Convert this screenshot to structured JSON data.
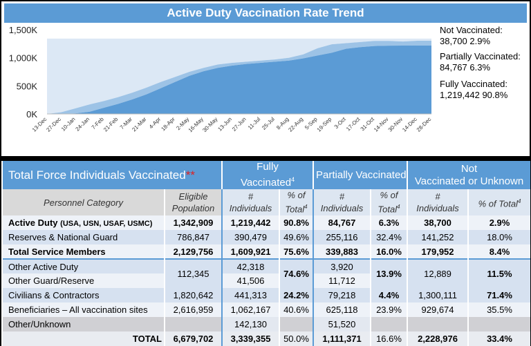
{
  "chart_data": {
    "type": "area",
    "title": "Active Duty Vaccination Rate Trend",
    "ylabel": "",
    "xlabel": "",
    "ylim": [
      0,
      1500
    ],
    "yticks": [
      "0K",
      "500K",
      "1,000K",
      "1,500K"
    ],
    "ytick_values": [
      0,
      500,
      1000,
      1500
    ],
    "x": [
      "13-Dec",
      "27-Dec",
      "10-Jan",
      "24-Jan",
      "7-Feb",
      "21-Feb",
      "7-Mar",
      "21-Mar",
      "4-Apr",
      "18-Apr",
      "2-May",
      "16-May",
      "30-May",
      "13-Jun",
      "27-Jun",
      "11-Jul",
      "25-Jul",
      "8-Aug",
      "22-Aug",
      "5-Sep",
      "19-Sep",
      "3-Oct",
      "17-Oct",
      "31-Oct",
      "14-Nov",
      "30-Nov",
      "14-Dec",
      "28-Dec"
    ],
    "stacked": true,
    "series": [
      {
        "name": "Fully Vaccinated",
        "color": "#5b9bd5",
        "values": [
          0,
          0,
          10,
          40,
          110,
          180,
          260,
          350,
          460,
          570,
          680,
          760,
          820,
          860,
          890,
          910,
          930,
          950,
          990,
          1040,
          1090,
          1160,
          1190,
          1210,
          1215,
          1217,
          1219,
          1219
        ]
      },
      {
        "name": "Partially Vaccinated",
        "color": "#9dc3e6",
        "values": [
          0,
          30,
          90,
          130,
          120,
          120,
          120,
          120,
          110,
          90,
          70,
          60,
          60,
          50,
          40,
          40,
          40,
          50,
          70,
          130,
          150,
          100,
          90,
          90,
          85,
          73,
          85,
          85
        ]
      },
      {
        "name": "Not Vaccinated",
        "color": "#dce8f5",
        "values": [
          1342,
          1312,
          1242,
          1172,
          1112,
          1042,
          962,
          872,
          772,
          682,
          592,
          522,
          462,
          432,
          412,
          392,
          372,
          342,
          282,
          172,
          102,
          82,
          62,
          42,
          42,
          52,
          38,
          38
        ]
      }
    ],
    "legend": [
      {
        "label": "Not Vaccinated:",
        "value": "38,700 2.9%"
      },
      {
        "label": "Partially Vaccinated:",
        "value": "84,767 6.3%"
      },
      {
        "label": "Fully Vaccinated:",
        "value": "1,219,442 90.8%"
      }
    ]
  },
  "table": {
    "title": "Total Force Individuals Vaccinated",
    "title_mark": "**",
    "groups": {
      "fully": "Fully",
      "fully2": "Vaccinated",
      "fully_sup": "4",
      "partial": "Partially  Vaccinated",
      "not1": "Not",
      "not2": "Vaccinated or Unknown"
    },
    "sub": {
      "category": "Personnel Category",
      "eligible1": "Eligible",
      "eligible2": "Population",
      "num": "#",
      "ind": "Individuals",
      "pct1": "% of",
      "pct2": "Total",
      "pct_total": "% of Total",
      "sup": "4"
    },
    "rows": {
      "ad": {
        "label": "Active Duty",
        "label_small": "(USA, USN, USAF, USMC)",
        "eligible": "1,342,909",
        "fully": "1,219,442",
        "fully_pct": "90.8%",
        "partial": "84,767",
        "partial_pct": "6.3%",
        "not": "38,700",
        "not_pct": "2.9%"
      },
      "rng": {
        "label": "Reserves & National Guard",
        "eligible": "786,847",
        "fully": "390,479",
        "fully_pct": "49.6%",
        "partial": "255,116",
        "partial_pct": "32.4%",
        "not": "141,252",
        "not_pct": "18.0%"
      },
      "tsm": {
        "label": "Total Service Members",
        "eligible": "2,129,756",
        "fully": "1,609,921",
        "fully_pct": "75.6%",
        "partial": "339,883",
        "partial_pct": "16.0%",
        "not": "179,952",
        "not_pct": "8.4%"
      },
      "other": {
        "label1": "Other Active Duty",
        "label2": "Other Guard/Reserve",
        "eligible": "112,345",
        "fully1": "42,318",
        "fully2": "41,506",
        "fully_pct": "74.6%",
        "partial1": "3,920",
        "partial2": "11,712",
        "partial_pct": "13.9%",
        "not": "12,889",
        "not_pct": "11.5%"
      },
      "civ": {
        "label": "Civilians & Contractors",
        "eligible": "1,820,642",
        "fully": "441,313",
        "fully_pct": "24.2%",
        "partial": "79,218",
        "partial_pct": "4.4%",
        "not": "1,300,111",
        "not_pct": "71.4%"
      },
      "ben": {
        "label": "Beneficiaries – All vaccination sites",
        "eligible": "2,616,959",
        "fully": "1,062,167",
        "fully_pct": "40.6%",
        "partial": "625,118",
        "partial_pct": "23.9%",
        "not": "929,674",
        "not_pct": "35.5%"
      },
      "unk": {
        "label": "Other/Unknown",
        "fully": "142,130",
        "partial": "51,520"
      },
      "total": {
        "label": "TOTAL",
        "eligible": "6,679,702",
        "fully": "3,339,355",
        "fully_pct": "50.0%",
        "partial": "1,111,371",
        "partial_pct": "16.6%",
        "not": "2,228,976",
        "not_pct": "33.4%"
      }
    }
  }
}
